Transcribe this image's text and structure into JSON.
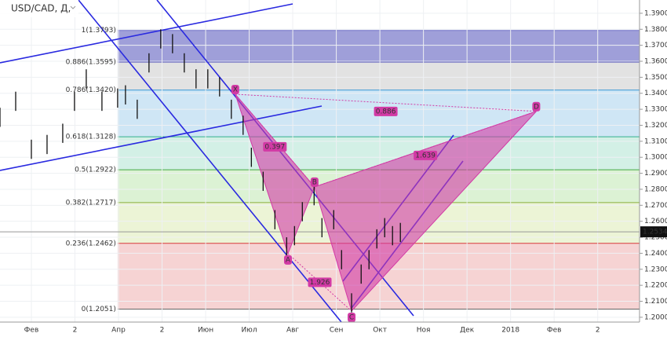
{
  "chart_data": {
    "type": "hlc",
    "symbol": "USD/CAD, Д,",
    "xlim": [
      0.28,
      14.96
    ],
    "ylim": [
      1.197,
      1.3983
    ],
    "xticks": [
      {
        "value": 1,
        "label": "Фев"
      },
      {
        "value": 2,
        "label": "2"
      },
      {
        "value": 3,
        "label": "Апр"
      },
      {
        "value": 4,
        "label": "2"
      },
      {
        "value": 5,
        "label": "Июн"
      },
      {
        "value": 6,
        "label": "Июл"
      },
      {
        "value": 7,
        "label": "Авг"
      },
      {
        "value": 8,
        "label": "Сен"
      },
      {
        "value": 9,
        "label": "Окт"
      },
      {
        "value": 10,
        "label": "Ноя"
      },
      {
        "value": 11,
        "label": "Дек"
      },
      {
        "value": 12,
        "label": "2018"
      },
      {
        "value": 13,
        "label": "Фев"
      },
      {
        "value": 14,
        "label": "2"
      }
    ],
    "yticks": [
      {
        "value": 1.2,
        "label": "1.2000"
      },
      {
        "value": 1.21,
        "label": "1.2100"
      },
      {
        "value": 1.22,
        "label": "1.2200"
      },
      {
        "value": 1.23,
        "label": "1.2300"
      },
      {
        "value": 1.24,
        "label": "1.2400"
      },
      {
        "value": 1.25,
        "label": "1.2500"
      },
      {
        "value": 1.26,
        "label": "1.2600"
      },
      {
        "value": 1.27,
        "label": "1.2700"
      },
      {
        "value": 1.28,
        "label": "1.2800"
      },
      {
        "value": 1.29,
        "label": "1.2900"
      },
      {
        "value": 1.3,
        "label": "1.3000"
      },
      {
        "value": 1.31,
        "label": "1.3100"
      },
      {
        "value": 1.32,
        "label": "1.3200"
      },
      {
        "value": 1.33,
        "label": "1.3300"
      },
      {
        "value": 1.34,
        "label": "1.3400"
      },
      {
        "value": 1.35,
        "label": "1.3500"
      },
      {
        "value": 1.36,
        "label": "1.3600"
      },
      {
        "value": 1.37,
        "label": "1.3700"
      },
      {
        "value": 1.38,
        "label": "1.3800"
      },
      {
        "value": 1.39,
        "label": "1.3900"
      }
    ],
    "bars": {
      "x": [
        0.28,
        0.64,
        1.0,
        1.36,
        1.72,
        1.99,
        2.26,
        2.62,
        2.98,
        3.16,
        3.43,
        3.7,
        3.97,
        4.24,
        4.51,
        4.78,
        5.05,
        5.32,
        5.59,
        5.86,
        6.05,
        6.32,
        6.59,
        6.86,
        7.04,
        7.22,
        7.49,
        7.67,
        7.94,
        8.12,
        8.35,
        8.57,
        8.75,
        8.93,
        9.11,
        9.29,
        9.47
      ],
      "high": [
        1.331,
        1.341,
        1.311,
        1.314,
        1.321,
        1.341,
        1.355,
        1.341,
        1.343,
        1.345,
        1.336,
        1.365,
        1.38,
        1.377,
        1.365,
        1.355,
        1.355,
        1.35,
        1.336,
        1.326,
        1.306,
        1.291,
        1.267,
        1.25,
        1.257,
        1.272,
        1.282,
        1.262,
        1.267,
        1.242,
        1.215,
        1.233,
        1.242,
        1.255,
        1.262,
        1.257,
        1.259
      ],
      "low": [
        1.319,
        1.329,
        1.299,
        1.302,
        1.309,
        1.329,
        1.343,
        1.329,
        1.331,
        1.333,
        1.324,
        1.353,
        1.368,
        1.365,
        1.353,
        1.343,
        1.343,
        1.338,
        1.324,
        1.314,
        1.294,
        1.279,
        1.255,
        1.238,
        1.245,
        1.26,
        1.27,
        1.25,
        1.255,
        1.23,
        1.203,
        1.221,
        1.23,
        1.243,
        1.25,
        1.245,
        1.247
      ]
    },
    "last_price": {
      "value": 1.2534,
      "label": "1.2534"
    },
    "fib": {
      "x_start": 2.98,
      "levels": [
        {
          "value": 1.3793,
          "label": "1(1.3793)",
          "color": "#7070c8",
          "fill": "#9f9fd9"
        },
        {
          "value": 1.3595,
          "label": "0.886(1.3595)",
          "color": "#4545b5",
          "fill": "#e2e2e2"
        },
        {
          "value": 1.342,
          "label": "0.786(1.3420)",
          "color": "#3d9ad6",
          "fill": "#cfe6f5"
        },
        {
          "value": 1.3128,
          "label": "0.618(1.3128)",
          "color": "#30b08c",
          "fill": "#d3f0e6"
        },
        {
          "value": 1.2922,
          "label": "0.5(1.2922)",
          "color": "#43a843",
          "fill": "#dcf2d4"
        },
        {
          "value": 1.2717,
          "label": "0.382(1.2717)",
          "color": "#8ab03a",
          "fill": "#ecf4d6"
        },
        {
          "value": 1.2462,
          "label": "0.236(1.2462)",
          "color": "#d83a3a",
          "fill": "#f6d3d3"
        },
        {
          "value": 1.2051,
          "label": "0(1.2051)",
          "color": "#666666",
          "fill": "#ffffff"
        }
      ]
    },
    "pattern": {
      "color": "#d23aa5",
      "points": [
        {
          "name": "X",
          "x": 5.68,
          "y": 1.3394
        },
        {
          "name": "A",
          "x": 6.89,
          "y": 1.2398
        },
        {
          "name": "B",
          "x": 7.5,
          "y": 1.2815
        },
        {
          "name": "C",
          "x": 8.35,
          "y": 1.2039
        },
        {
          "name": "D",
          "x": 12.59,
          "y": 1.3287
        }
      ],
      "ratios": [
        0.397,
        1.639,
        0.886,
        1.926
      ]
    }
  }
}
